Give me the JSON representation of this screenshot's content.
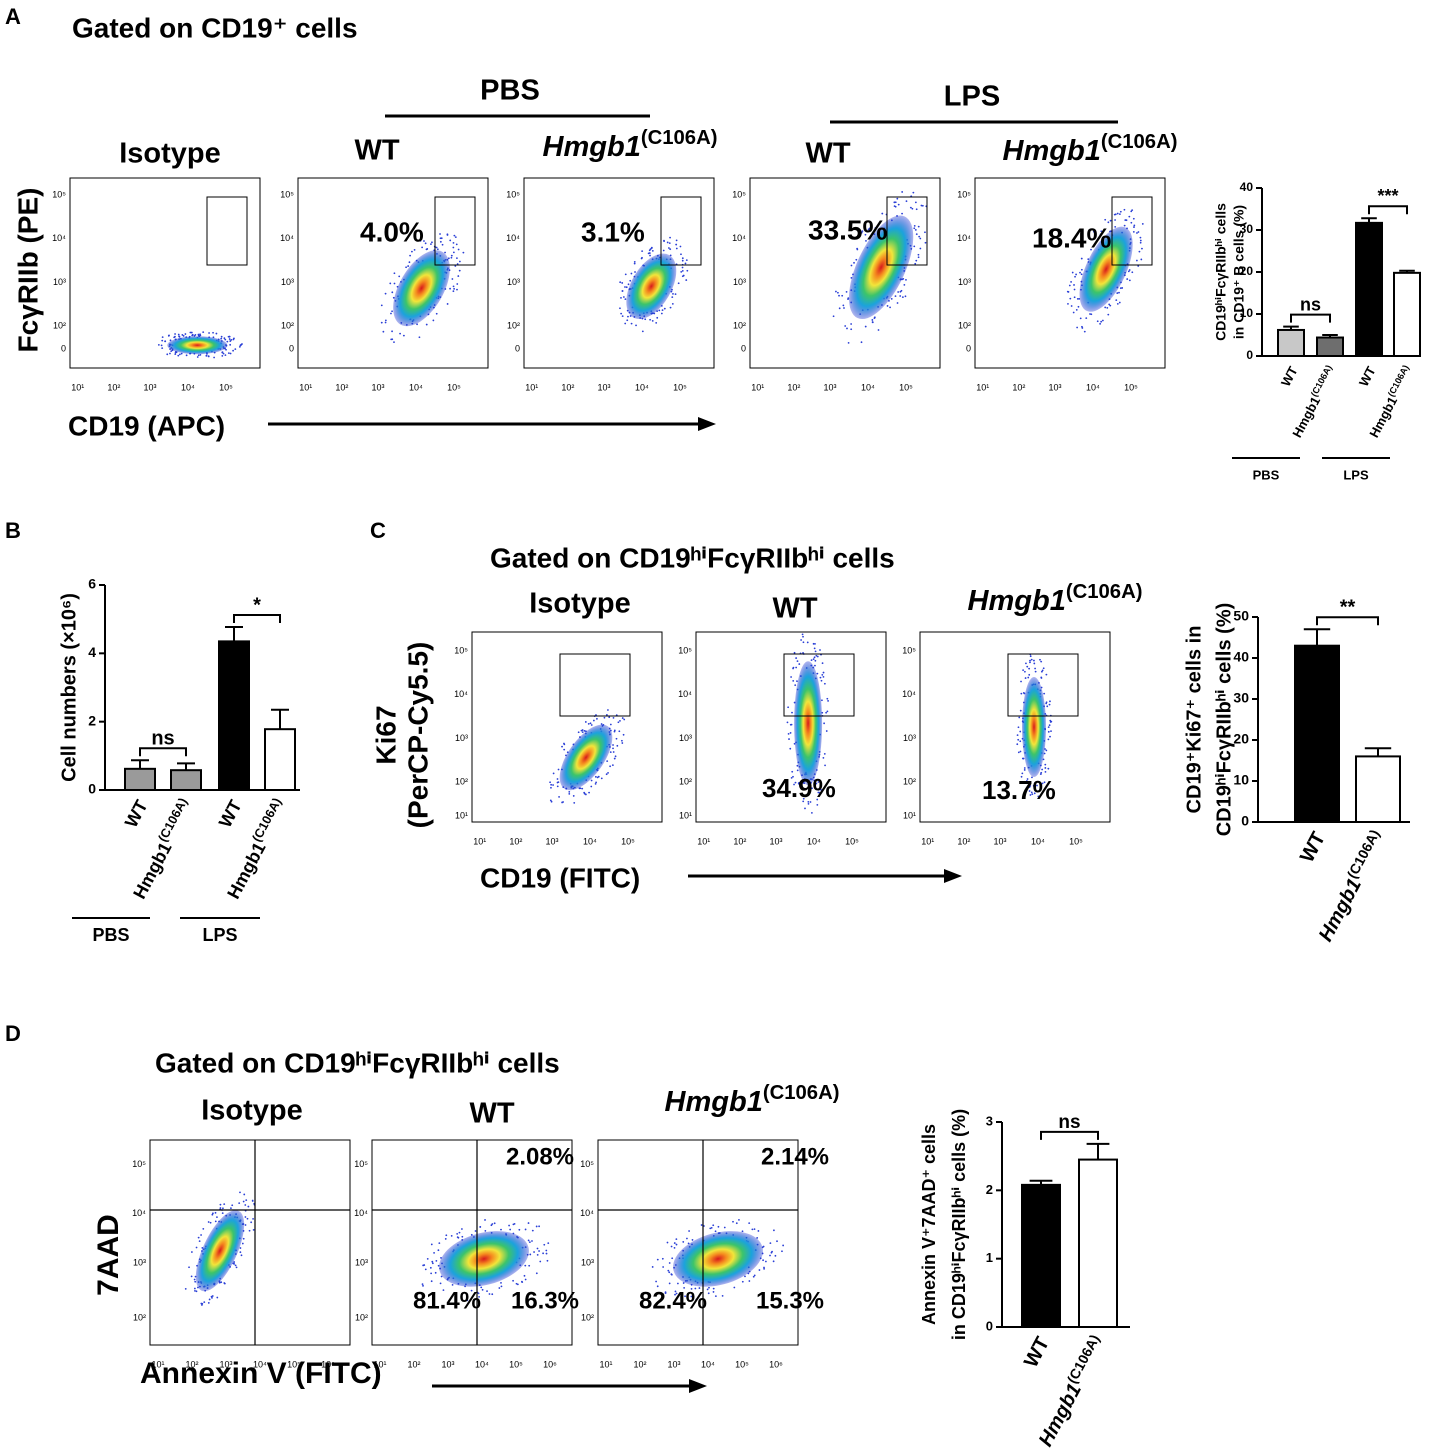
{
  "figure": {
    "A": {
      "letter": "A",
      "title": "Gated on CD19⁺ cells",
      "groups": [
        "PBS",
        "LPS"
      ],
      "plots": [
        {
          "title": "Isotype"
        },
        {
          "title": "WT",
          "gates": [
            "4.0%"
          ]
        },
        {
          "title": {
            "gene": "Hmgb1",
            "allele": "(C106A)"
          },
          "gates": [
            "3.1%"
          ]
        },
        {
          "title": "WT",
          "gates": [
            "33.5%"
          ]
        },
        {
          "title": {
            "gene": "Hmgb1",
            "allele": "(C106A)"
          },
          "gates": [
            "18.4%"
          ]
        }
      ],
      "y_axis": [
        "FcγRIIb (PE)"
      ],
      "x_axis": "CD19 (APC)",
      "xticks": [
        "10¹",
        "10²",
        "10³",
        "10⁴",
        "10⁵"
      ],
      "yticks": [
        "10⁵",
        "10⁴",
        "10³",
        "10²",
        "0"
      ]
    },
    "B": {
      "letter": "B"
    },
    "C": {
      "letter": "C",
      "title": "Gated on CD19ʰⁱFcγRIIbʰⁱ cells",
      "plots": [
        {
          "title": "Isotype"
        },
        {
          "title": "WT",
          "gates": [
            "34.9%"
          ]
        },
        {
          "title": {
            "gene": "Hmgb1",
            "allele": "(C106A)"
          },
          "gates": [
            "13.7%"
          ]
        }
      ],
      "y_axis": [
        "Ki67",
        "(PerCP-Cy5.5)"
      ],
      "x_axis": "CD19 (FITC)",
      "xticks": [
        "10¹",
        "10²",
        "10³",
        "10⁴",
        "10⁵"
      ],
      "yticks": [
        "10⁵",
        "10⁴",
        "10³",
        "10²",
        "10¹"
      ]
    },
    "D": {
      "letter": "D",
      "title": "Gated on CD19ʰⁱFcγRIIbʰⁱ cells",
      "plots": [
        {
          "title": "Isotype"
        },
        {
          "title": "WT",
          "gates": [
            "2.08%",
            "81.4%",
            "16.3%"
          ]
        },
        {
          "title": {
            "gene": "Hmgb1",
            "allele": "(C106A)"
          },
          "gates": [
            "2.14%",
            "82.4%",
            "15.3%"
          ]
        }
      ],
      "y_axis": [
        "7AAD"
      ],
      "x_axis": "Annexin V (FITC)",
      "xticks": [
        "10¹",
        "10²",
        "10³",
        "10⁴",
        "10⁵",
        "10⁶"
      ],
      "yticks": [
        "10⁵",
        "10⁴",
        "10³",
        "10²"
      ]
    }
  },
  "chart_data": [
    {
      "type": "bar",
      "ylabel": [
        "CD19ʰⁱFcγRIIbʰⁱ cells",
        "in CD19⁺ B cells (%)"
      ],
      "categories": [
        "WT",
        {
          "gene": "Hmgb1",
          "allele": "(C106A)"
        },
        "WT",
        {
          "gene": "Hmgb1",
          "allele": "(C106A)"
        }
      ],
      "values": [
        6.2,
        4.4,
        31.7,
        19.8
      ],
      "errors": [
        0.8,
        0.6,
        1.1,
        0.5
      ],
      "colors": [
        "#c8c8c8",
        "#6e6e6e",
        "#000000",
        "#ffffff"
      ],
      "ylim": [
        0,
        40
      ],
      "yticks": [
        0,
        10,
        20,
        30,
        40
      ],
      "significance": [
        "ns",
        "***"
      ],
      "groups": [
        "PBS",
        "LPS"
      ]
    },
    {
      "type": "bar",
      "ylabel": [
        "Cell numbers (×10⁶)"
      ],
      "categories": [
        "WT",
        {
          "gene": "Hmgb1",
          "allele": "(C106A)"
        },
        "WT",
        {
          "gene": "Hmgb1",
          "allele": "(C106A)"
        }
      ],
      "values": [
        0.62,
        0.58,
        4.35,
        1.78
      ],
      "errors": [
        0.25,
        0.2,
        0.42,
        0.57
      ],
      "colors": [
        "#9a9a9a",
        "#9a9a9a",
        "#000000",
        "#ffffff"
      ],
      "ylim": [
        0,
        6
      ],
      "yticks": [
        0,
        2,
        4,
        6
      ],
      "significance": [
        "ns",
        "*"
      ],
      "groups": [
        "PBS",
        "LPS"
      ]
    },
    {
      "type": "bar",
      "ylabel": [
        "CD19⁺Ki67⁺ cells in",
        "CD19ʰⁱFcγRIIbʰⁱ cells (%)"
      ],
      "categories": [
        "WT",
        {
          "gene": "Hmgb1",
          "allele": "(C106A)"
        }
      ],
      "category_italic": true,
      "values": [
        43,
        16
      ],
      "errors": [
        4,
        2
      ],
      "colors": [
        "#000000",
        "#ffffff"
      ],
      "ylim": [
        0,
        50
      ],
      "yticks": [
        0,
        10,
        20,
        30,
        40,
        50
      ],
      "significance": [
        "**"
      ]
    },
    {
      "type": "bar",
      "ylabel": [
        "Annexin V⁺7AAD⁺ cells",
        "in CD19ʰⁱFcγRIIbʰⁱ cells (%)"
      ],
      "categories": [
        "WT",
        {
          "gene": "Hmgb1",
          "allele": "(C106A)"
        }
      ],
      "category_italic": true,
      "values": [
        2.08,
        2.45
      ],
      "errors": [
        0.06,
        0.23
      ],
      "colors": [
        "#000000",
        "#ffffff"
      ],
      "ylim": [
        0,
        3
      ],
      "yticks": [
        0,
        1,
        2,
        3
      ],
      "significance": [
        "ns"
      ]
    }
  ]
}
